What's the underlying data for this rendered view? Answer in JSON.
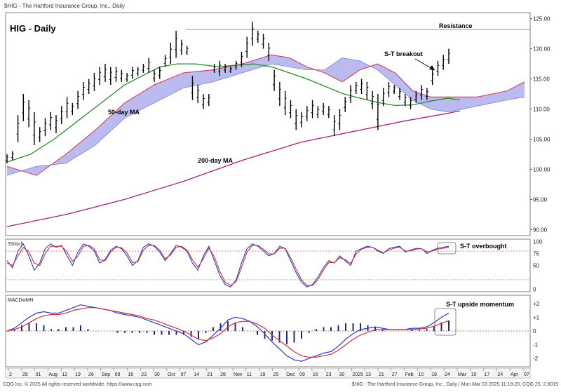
{
  "header_text": "$HIG - The Hartford Insurance Group, Inc., Daily",
  "footer_left": "CQG Inc. © 2025 All rights reserved worldwide. https://www.cqg.com",
  "footer_right": "$HIG - The Hartford Insurance Group, Inc., Daily | Mon Mar 03 2025 11:19:20, CQG 25. 2.8015",
  "chart_data": [
    {
      "type": "line",
      "title": "HIG - Daily",
      "subtype": "ohlc-bars-with-cloud",
      "ylim": [
        89,
        126
      ],
      "y_ticks": [
        90,
        95,
        100,
        105,
        110,
        115,
        120,
        125
      ],
      "x_ticks": [
        "2",
        "29",
        "01",
        "Aug",
        "12",
        "19",
        "26",
        "Sep",
        "09",
        "16",
        "23",
        "30",
        "Oct",
        "07",
        "14",
        "21",
        "28",
        "Nov",
        "11",
        "18",
        "25",
        "Dec",
        "09",
        "16",
        "23",
        "30",
        "2025",
        "13",
        "21",
        "27",
        "Feb",
        "10",
        "18",
        "24",
        "Mar",
        "10",
        "17",
        "24",
        "Apr",
        "07"
      ],
      "price_bars": [
        {
          "hi": 102.5,
          "lo": 101.0
        },
        {
          "hi": 103.0,
          "lo": 101.5
        },
        {
          "hi": 109.0,
          "lo": 104.5
        },
        {
          "hi": 112.5,
          "lo": 108.0
        },
        {
          "hi": 111.5,
          "lo": 107.0
        },
        {
          "hi": 109.5,
          "lo": 104.0
        },
        {
          "hi": 107.0,
          "lo": 104.5
        },
        {
          "hi": 108.5,
          "lo": 105.5
        },
        {
          "hi": 109.5,
          "lo": 106.5
        },
        {
          "hi": 109.0,
          "lo": 106.0
        },
        {
          "hi": 110.5,
          "lo": 107.5
        },
        {
          "hi": 112.0,
          "lo": 108.5
        },
        {
          "hi": 111.0,
          "lo": 109.0
        },
        {
          "hi": 113.0,
          "lo": 110.0
        },
        {
          "hi": 114.5,
          "lo": 111.5
        },
        {
          "hi": 115.0,
          "lo": 112.5
        },
        {
          "hi": 116.0,
          "lo": 113.0
        },
        {
          "hi": 117.0,
          "lo": 114.0
        },
        {
          "hi": 117.5,
          "lo": 114.5
        },
        {
          "hi": 117.0,
          "lo": 114.0
        },
        {
          "hi": 117.0,
          "lo": 114.5
        },
        {
          "hi": 116.5,
          "lo": 114.5
        },
        {
          "hi": 116.0,
          "lo": 114.5
        },
        {
          "hi": 117.0,
          "lo": 115.0
        },
        {
          "hi": 117.0,
          "lo": 115.5
        },
        {
          "hi": 117.5,
          "lo": 116.0
        },
        {
          "hi": 118.5,
          "lo": 116.0
        },
        {
          "hi": 116.5,
          "lo": 114.5
        },
        {
          "hi": 117.0,
          "lo": 115.0
        },
        {
          "hi": 119.0,
          "lo": 117.0
        },
        {
          "hi": 121.0,
          "lo": 117.5
        },
        {
          "hi": 123.0,
          "lo": 118.5
        },
        {
          "hi": 121.5,
          "lo": 119.0
        },
        {
          "hi": 120.5,
          "lo": 119.0
        },
        {
          "hi": 115.5,
          "lo": 111.5
        },
        {
          "hi": 114.0,
          "lo": 111.0
        },
        {
          "hi": 112.5,
          "lo": 110.0
        },
        {
          "hi": 112.5,
          "lo": 110.5
        },
        {
          "hi": 117.5,
          "lo": 116.0
        },
        {
          "hi": 118.0,
          "lo": 115.5
        },
        {
          "hi": 117.5,
          "lo": 116.0
        },
        {
          "hi": 117.0,
          "lo": 116.0
        },
        {
          "hi": 118.0,
          "lo": 116.5
        },
        {
          "hi": 119.5,
          "lo": 117.0
        },
        {
          "hi": 122.0,
          "lo": 118.5
        },
        {
          "hi": 124.5,
          "lo": 120.5
        },
        {
          "hi": 123.0,
          "lo": 121.0
        },
        {
          "hi": 122.5,
          "lo": 120.0
        },
        {
          "hi": 121.0,
          "lo": 118.0
        },
        {
          "hi": 116.5,
          "lo": 113.0
        },
        {
          "hi": 114.5,
          "lo": 110.5
        },
        {
          "hi": 113.0,
          "lo": 109.0
        },
        {
          "hi": 111.5,
          "lo": 108.5
        },
        {
          "hi": 110.0,
          "lo": 106.5
        },
        {
          "hi": 109.5,
          "lo": 107.0
        },
        {
          "hi": 110.5,
          "lo": 108.0
        },
        {
          "hi": 111.5,
          "lo": 108.5
        },
        {
          "hi": 110.5,
          "lo": 108.5
        },
        {
          "hi": 111.0,
          "lo": 109.0
        },
        {
          "hi": 110.5,
          "lo": 108.5
        },
        {
          "hi": 109.0,
          "lo": 105.5
        },
        {
          "hi": 110.0,
          "lo": 106.5
        },
        {
          "hi": 112.0,
          "lo": 109.5
        },
        {
          "hi": 114.0,
          "lo": 111.0
        },
        {
          "hi": 114.5,
          "lo": 112.5
        },
        {
          "hi": 115.0,
          "lo": 112.5
        },
        {
          "hi": 114.5,
          "lo": 111.5
        },
        {
          "hi": 113.0,
          "lo": 110.0
        },
        {
          "hi": 112.5,
          "lo": 106.5
        },
        {
          "hi": 113.5,
          "lo": 110.5
        },
        {
          "hi": 114.5,
          "lo": 112.0
        },
        {
          "hi": 114.0,
          "lo": 112.5
        },
        {
          "hi": 113.5,
          "lo": 111.5
        },
        {
          "hi": 112.5,
          "lo": 110.5
        },
        {
          "hi": 112.0,
          "lo": 110.0
        },
        {
          "hi": 113.0,
          "lo": 111.0
        },
        {
          "hi": 114.0,
          "lo": 111.5
        },
        {
          "hi": 113.5,
          "lo": 111.5
        },
        {
          "hi": 116.5,
          "lo": 114.0
        },
        {
          "hi": 118.0,
          "lo": 115.5
        },
        {
          "hi": 119.0,
          "lo": 116.5
        },
        {
          "hi": 120.0,
          "lo": 117.5
        }
      ],
      "ma50": [
        [
          0,
          101.2
        ],
        [
          8,
          102.5
        ],
        [
          16,
          105.0
        ],
        [
          24,
          108.0
        ],
        [
          32,
          111.0
        ],
        [
          40,
          114.0
        ],
        [
          46,
          115.5
        ],
        [
          52,
          117.0
        ],
        [
          58,
          117.5
        ],
        [
          64,
          117.5
        ],
        [
          72,
          117.0
        ],
        [
          78,
          117.3
        ],
        [
          84,
          117.5
        ],
        [
          90,
          117.0
        ],
        [
          96,
          116.0
        ],
        [
          102,
          115.0
        ],
        [
          108,
          113.8
        ],
        [
          114,
          112.6
        ],
        [
          120,
          111.8
        ],
        [
          126,
          111.1
        ],
        [
          132,
          110.6
        ],
        [
          138,
          110.7
        ],
        [
          144,
          111.3
        ],
        [
          150,
          111.8
        ],
        [
          154,
          111.5
        ]
      ],
      "ma200": [
        [
          0,
          90.5
        ],
        [
          20,
          92.5
        ],
        [
          40,
          95.0
        ],
        [
          60,
          98.0
        ],
        [
          80,
          101.5
        ],
        [
          100,
          104.5
        ],
        [
          120,
          106.5
        ],
        [
          135,
          108.0
        ],
        [
          150,
          109.3
        ],
        [
          154,
          109.7
        ]
      ],
      "cloud_upper": [
        [
          0,
          100.5
        ],
        [
          10,
          99.0
        ],
        [
          20,
          102.5
        ],
        [
          30,
          106.5
        ],
        [
          40,
          111.0
        ],
        [
          50,
          114.0
        ],
        [
          60,
          116.0
        ],
        [
          70,
          116.5
        ],
        [
          80,
          117.5
        ],
        [
          90,
          119.0
        ],
        [
          96,
          118.5
        ],
        [
          102,
          117.0
        ],
        [
          108,
          116.0
        ],
        [
          114,
          114.5
        ],
        [
          120,
          116.5
        ],
        [
          126,
          117.5
        ],
        [
          132,
          116.0
        ],
        [
          138,
          113.0
        ],
        [
          144,
          112.0
        ],
        [
          150,
          112.0
        ],
        [
          160,
          112.0
        ],
        [
          170,
          113.0
        ],
        [
          176,
          114.5
        ]
      ],
      "cloud_lower": [
        [
          0,
          99.0
        ],
        [
          10,
          100.5
        ],
        [
          20,
          101.0
        ],
        [
          30,
          104.0
        ],
        [
          40,
          108.5
        ],
        [
          50,
          111.0
        ],
        [
          60,
          113.5
        ],
        [
          70,
          114.5
        ],
        [
          80,
          116.0
        ],
        [
          90,
          117.5
        ],
        [
          96,
          117.0
        ],
        [
          102,
          116.5
        ],
        [
          108,
          116.5
        ],
        [
          114,
          118.5
        ],
        [
          120,
          118.0
        ],
        [
          126,
          116.5
        ],
        [
          132,
          114.0
        ],
        [
          138,
          111.5
        ],
        [
          144,
          110.0
        ],
        [
          150,
          109.5
        ],
        [
          160,
          110.5
        ],
        [
          170,
          111.5
        ],
        [
          176,
          112.0
        ]
      ],
      "resistance_level": 123.2,
      "annotations": [
        "HIG - Daily",
        "Resistance",
        "S-T breakout",
        "50-day MA",
        "200-day MA"
      ]
    },
    {
      "type": "line",
      "title": "SStoch",
      "ylim": [
        -5,
        105
      ],
      "y_ticks": [
        0,
        50,
        75,
        100
      ],
      "ref_lines": [
        80,
        20
      ],
      "series": [
        {
          "values": [
            60,
            45,
            80,
            95,
            70,
            40,
            55,
            85,
            95,
            88,
            92,
            70,
            50,
            78,
            95,
            90,
            80,
            55,
            62,
            82,
            90,
            85,
            70,
            50,
            60,
            88,
            95,
            90,
            78,
            60,
            75,
            92,
            88,
            80,
            55,
            40,
            70,
            90,
            60,
            30,
            10,
            5,
            20,
            55,
            85,
            95,
            90,
            80,
            70,
            75,
            90,
            85,
            60,
            35,
            15,
            5,
            10,
            25,
            45,
            60,
            55,
            70,
            60,
            50,
            80,
            85,
            90,
            88,
            80,
            75,
            85,
            88,
            90,
            78,
            82,
            86,
            85,
            75,
            82,
            86,
            88,
            90
          ]
        },
        {
          "values": [
            55,
            50,
            70,
            88,
            78,
            55,
            50,
            75,
            90,
            90,
            90,
            78,
            58,
            70,
            90,
            92,
            85,
            62,
            60,
            78,
            88,
            87,
            76,
            56,
            58,
            82,
            92,
            92,
            82,
            64,
            72,
            88,
            90,
            82,
            62,
            46,
            64,
            86,
            68,
            38,
            15,
            8,
            16,
            46,
            78,
            92,
            92,
            84,
            74,
            74,
            86,
            86,
            66,
            42,
            20,
            8,
            8,
            20,
            40,
            56,
            56,
            66,
            62,
            54,
            74,
            84,
            88,
            88,
            82,
            76,
            82,
            86,
            88,
            80,
            80,
            84,
            85,
            78,
            80,
            84,
            86,
            88
          ]
        }
      ],
      "annotations": [
        "S-T overbought"
      ]
    },
    {
      "type": "line",
      "title": "MACDwMH",
      "ylim": [
        -2.6,
        2.6
      ],
      "y_ticks": [
        2,
        1,
        0,
        -1,
        -2
      ],
      "macd": [
        0.0,
        0.2,
        0.6,
        1.0,
        1.3,
        1.4,
        1.3,
        1.3,
        1.5,
        1.7,
        1.9,
        1.8,
        1.7,
        1.6,
        1.5,
        1.3,
        1.2,
        1.1,
        1.0,
        0.8,
        0.6,
        0.4,
        0.2,
        0.0,
        -0.2,
        -0.6,
        -1.0,
        -0.8,
        -0.3,
        0.2,
        0.8,
        1.0,
        0.9,
        0.7,
        0.3,
        -0.2,
        -0.8,
        -1.3,
        -1.8,
        -2.1,
        -2.2,
        -2.0,
        -1.8,
        -1.6,
        -1.5,
        -1.1,
        -0.6,
        -0.2,
        0.1,
        0.2,
        0.3,
        0.2,
        0.1,
        0.1,
        0.1,
        0.2,
        0.2,
        0.3,
        0.6,
        1.0,
        1.3
      ],
      "signal": [
        0.0,
        0.1,
        0.3,
        0.6,
        0.9,
        1.1,
        1.2,
        1.2,
        1.3,
        1.5,
        1.6,
        1.7,
        1.7,
        1.6,
        1.5,
        1.4,
        1.3,
        1.2,
        1.1,
        0.9,
        0.8,
        0.6,
        0.4,
        0.2,
        0.0,
        -0.3,
        -0.6,
        -0.7,
        -0.5,
        -0.2,
        0.3,
        0.6,
        0.7,
        0.7,
        0.5,
        0.2,
        -0.3,
        -0.7,
        -1.1,
        -1.5,
        -1.8,
        -1.9,
        -1.9,
        -1.8,
        -1.7,
        -1.4,
        -1.0,
        -0.6,
        -0.3,
        -0.1,
        0.1,
        0.1,
        0.1,
        0.1,
        0.1,
        0.1,
        0.15,
        0.2,
        0.35,
        0.55,
        0.75
      ],
      "annotations": [
        "S-T upside momentum"
      ]
    }
  ]
}
